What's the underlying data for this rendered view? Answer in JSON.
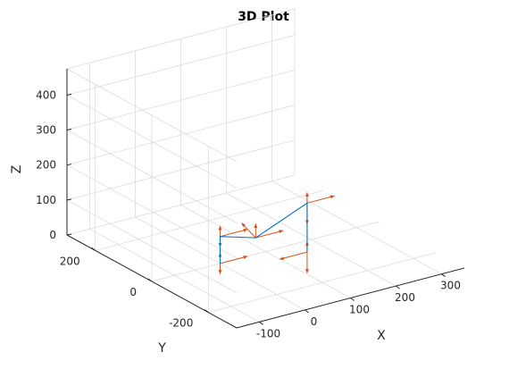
{
  "chart_data": {
    "type": "line3d",
    "title": "3D Plot",
    "xlabel": "X",
    "ylabel": "Y",
    "zlabel": "Z",
    "xlim": [
      -150,
      350
    ],
    "ylim": [
      -300,
      300
    ],
    "zlim": [
      0,
      475
    ],
    "grid": true,
    "x_ticks": [
      -100,
      0,
      100,
      200,
      300
    ],
    "y_ticks": [
      200,
      0,
      -200
    ],
    "z_ticks": [
      0,
      100,
      200,
      300,
      400
    ],
    "colors": {
      "path": "#0072bd",
      "frames": "#d95319"
    },
    "series": [
      {
        "name": "",
        "points": [
          [
            0,
            0,
            0
          ],
          [
            0,
            0,
            77
          ],
          [
            -15,
            -150,
            145
          ],
          [
            160,
            -50,
            140
          ],
          [
            160,
            -50,
            0
          ]
        ]
      }
    ],
    "frames": [
      {
        "origin": [
          0,
          0,
          0
        ],
        "axes": [
          [
            60,
            0,
            0
          ],
          [
            0,
            0,
            30
          ],
          [
            0,
            0,
            -30
          ]
        ]
      },
      {
        "origin": [
          0,
          0,
          77
        ],
        "axes": [
          [
            60,
            0,
            0
          ],
          [
            0,
            0,
            30
          ],
          [
            0,
            0,
            -30
          ]
        ]
      },
      {
        "origin": [
          -15,
          -150,
          145
        ],
        "axes": [
          [
            60,
            0,
            0
          ],
          [
            0,
            50,
            20
          ],
          [
            0,
            0,
            40
          ]
        ]
      },
      {
        "origin": [
          160,
          -50,
          140
        ],
        "axes": [
          [
            60,
            0,
            0
          ],
          [
            0,
            0,
            30
          ],
          [
            0,
            0,
            -60
          ]
        ]
      },
      {
        "origin": [
          160,
          -50,
          0
        ],
        "axes": [
          [
            -60,
            0,
            0
          ],
          [
            0,
            0,
            30
          ],
          [
            0,
            0,
            -60
          ]
        ]
      }
    ]
  }
}
